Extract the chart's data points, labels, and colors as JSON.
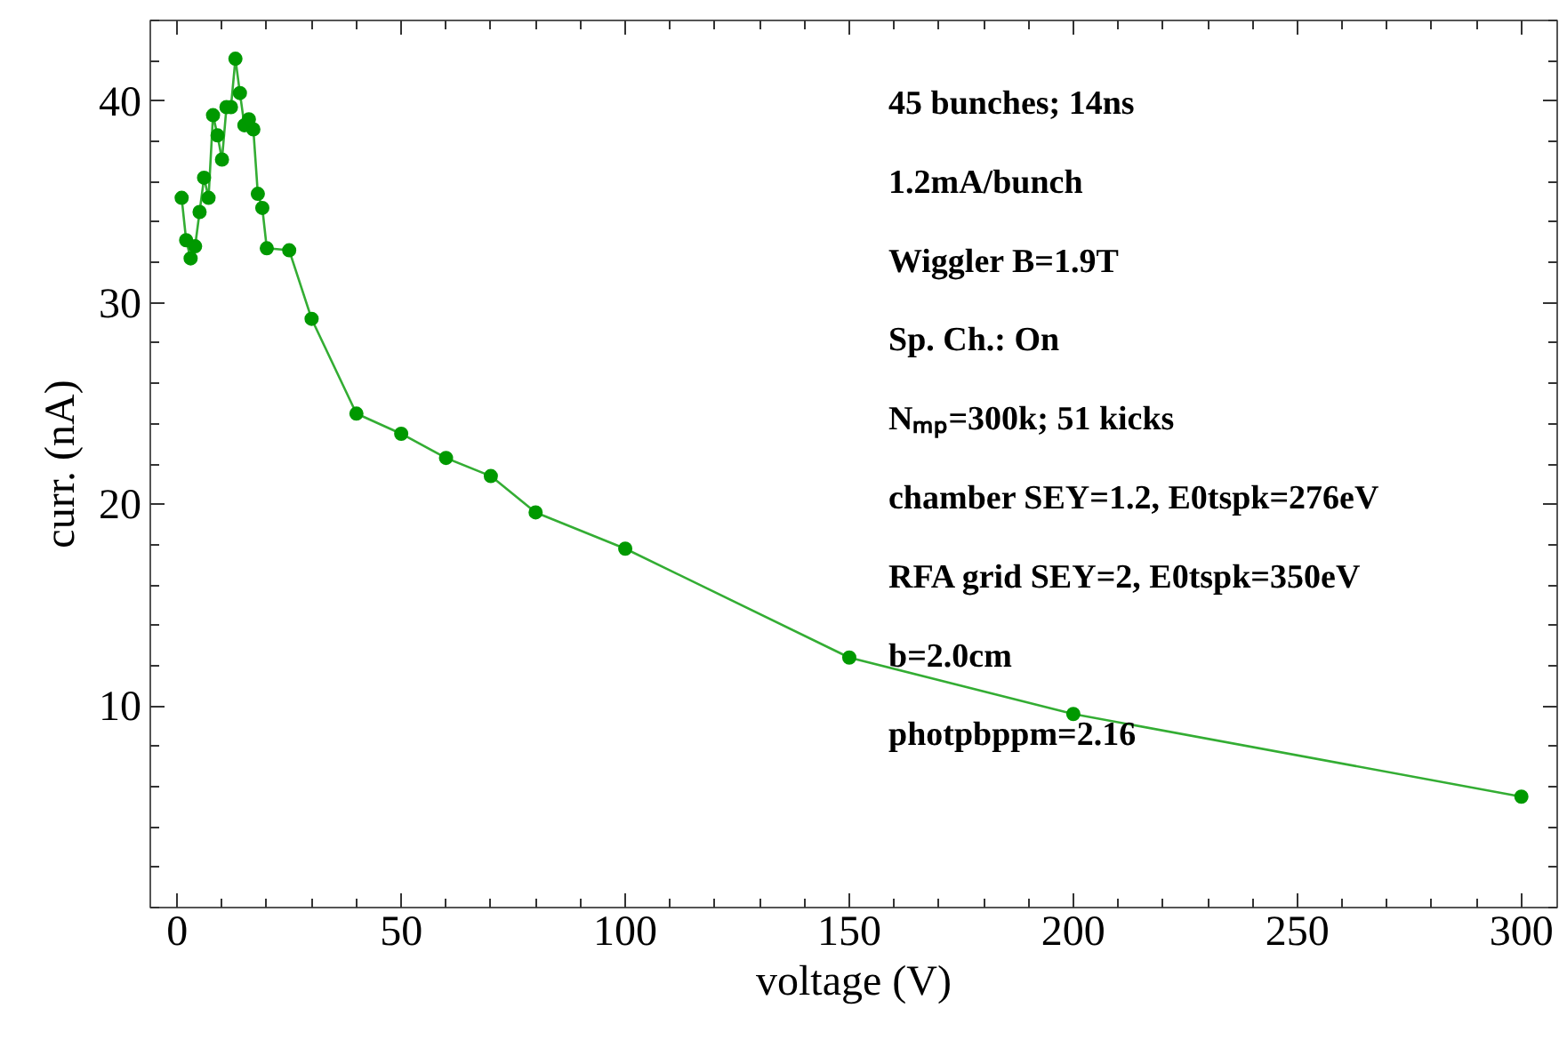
{
  "chart_data": {
    "type": "line",
    "xlabel": "voltage (V)",
    "ylabel": "curr. (nA)",
    "x": [
      1,
      2,
      3,
      4,
      5,
      6,
      7,
      8,
      9,
      10,
      11,
      12,
      13,
      14,
      15,
      16,
      17,
      18,
      19,
      20,
      25,
      30,
      40,
      50,
      60,
      70,
      80,
      100,
      150,
      200,
      300
    ],
    "series": [
      {
        "color": "#009900",
        "values": [
          35.2,
          33.1,
          32.2,
          32.8,
          34.5,
          36.2,
          35.2,
          39.3,
          38.3,
          37.1,
          39.7,
          39.7,
          42.1,
          40.4,
          38.8,
          39.1,
          38.6,
          35.4,
          34.7,
          32.7,
          32.6,
          29.2,
          24.5,
          23.5,
          22.3,
          21.4,
          19.6,
          17.8,
          12.4,
          9.6,
          5.5
        ]
      }
    ],
    "xlim": [
      -6,
      308
    ],
    "ylim": [
      0,
      44
    ],
    "xticks": [
      0,
      50,
      100,
      150,
      200,
      250,
      300
    ],
    "yticks": [
      10,
      20,
      30,
      40
    ],
    "marker": "circle",
    "line_style": "solid",
    "grid": false,
    "annotations": [
      "45 bunches; 14ns",
      "1.2mA/bunch",
      "Wiggler B=1.9T",
      "Sp. Ch.: On",
      "Nₘₚ=300k; 51 kicks",
      "chamber SEY=1.2, E0tspk=276eV",
      "RFA grid SEY=2, E0tspk=350eV",
      "b=2.0cm",
      "photpbppm=2.16"
    ]
  }
}
